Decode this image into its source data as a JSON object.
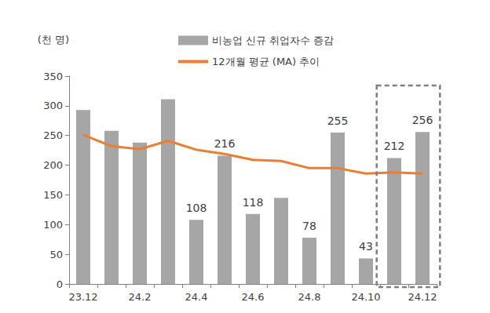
{
  "chart_data": {
    "type": "bar",
    "ylabel": "(천 명)",
    "categories": [
      "23.12",
      null,
      "24.2",
      null,
      "24.4",
      null,
      "24.6",
      null,
      "24.8",
      null,
      "24.10",
      null,
      "24.12"
    ],
    "series": [
      {
        "name": "비농업 신규 취업자수 증감",
        "type": "bar",
        "color": "#a6a6a6",
        "values": [
          293,
          258,
          238,
          311,
          108,
          216,
          118,
          145,
          78,
          255,
          43,
          212,
          256
        ],
        "value_labels": [
          null,
          null,
          null,
          null,
          "108",
          "216",
          "118",
          null,
          "78",
          "255",
          "43",
          "212",
          "256"
        ]
      },
      {
        "name": "12개월 평균 (MA) 추이",
        "type": "line",
        "color": "#ed7d31",
        "marker": "none",
        "values": [
          251,
          232,
          227,
          241,
          226,
          219,
          209,
          207,
          195,
          195,
          186,
          188,
          186
        ]
      }
    ],
    "ylim": [
      0,
      350
    ],
    "yticks": [
      0,
      50,
      100,
      150,
      200,
      250,
      300,
      350
    ],
    "grid": false,
    "legend": "top",
    "data_labels": true
  }
}
